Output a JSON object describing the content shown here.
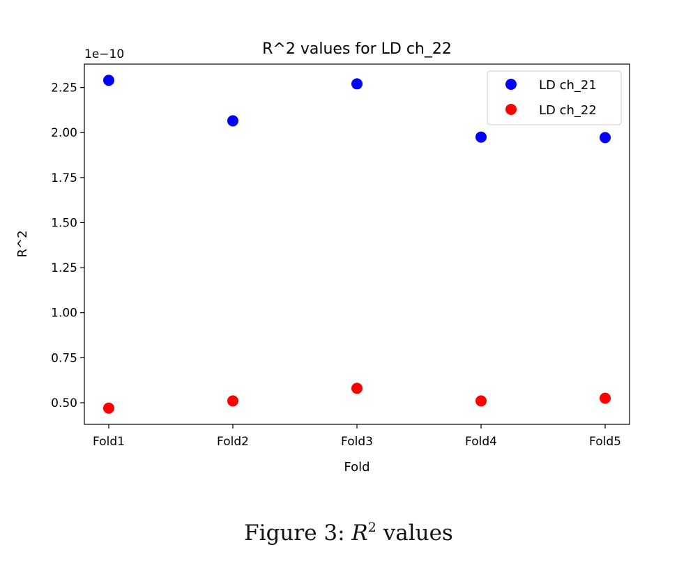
{
  "chart_data": {
    "type": "scatter",
    "title": "R^2 values for LD ch_22",
    "xlabel": "Fold",
    "ylabel": "R^2",
    "y_multiplier_label": "1e−10",
    "categories": [
      "Fold1",
      "Fold2",
      "Fold3",
      "Fold4",
      "Fold5"
    ],
    "ylim": [
      0.38,
      2.38
    ],
    "yticks": [
      0.5,
      0.75,
      1.0,
      1.25,
      1.5,
      1.75,
      2.0,
      2.25
    ],
    "ytick_labels": [
      "0.50",
      "0.75",
      "1.00",
      "1.25",
      "1.50",
      "1.75",
      "2.00",
      "2.25"
    ],
    "grid": false,
    "legend_position": "top-right",
    "series": [
      {
        "name": "LD ch_21",
        "color": "#0000ff",
        "values": [
          2.29,
          2.065,
          2.27,
          1.975,
          1.972
        ]
      },
      {
        "name": "LD ch_22",
        "color": "#ff0000",
        "values": [
          0.47,
          0.51,
          0.58,
          0.51,
          0.525
        ]
      }
    ]
  },
  "caption": {
    "prefix": "Figure 3:  ",
    "symbol": "R",
    "exponent": "2",
    "suffix": " values"
  }
}
